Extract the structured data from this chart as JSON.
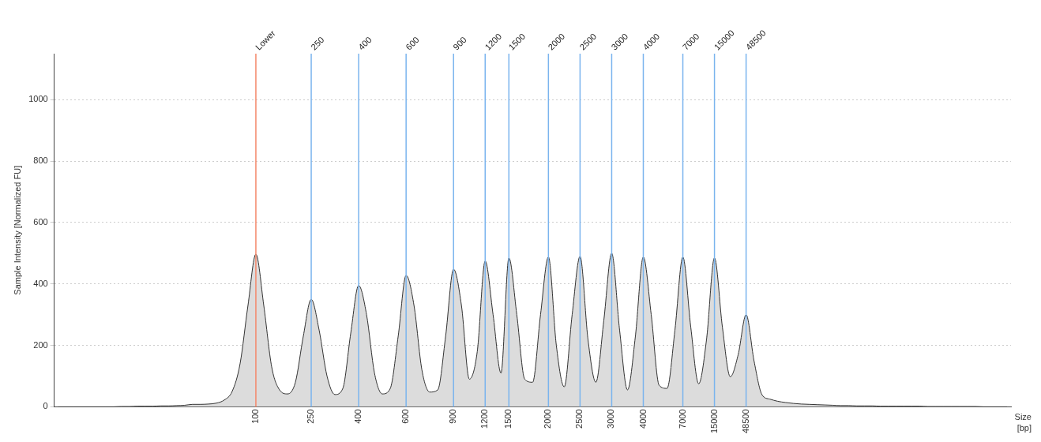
{
  "chart_data": {
    "type": "area",
    "xlabel": "Size [bp]",
    "ylabel": "Sample Intensity [Normalized FU]",
    "categories": [
      null,
      null,
      null,
      null,
      null,
      null,
      null,
      null,
      null,
      null,
      null,
      null,
      null,
      null,
      null,
      null,
      null,
      null,
      null,
      null,
      null,
      null,
      null,
      null,
      null,
      "100",
      null,
      null,
      null,
      null,
      null,
      null,
      "250",
      null,
      null,
      null,
      null,
      null,
      "400",
      null,
      null,
      null,
      null,
      null,
      "600",
      null,
      null,
      null,
      null,
      null,
      "900",
      null,
      null,
      null,
      "1200",
      null,
      null,
      "1500",
      null,
      null,
      null,
      null,
      "2000",
      null,
      null,
      null,
      "2500",
      null,
      null,
      null,
      "3000",
      null,
      null,
      null,
      "4000",
      null,
      null,
      null,
      null,
      "7000",
      null,
      null,
      null,
      "15000",
      null,
      null,
      null,
      "48500",
      null,
      null,
      null,
      null,
      null,
      null,
      null,
      null,
      null,
      null,
      null,
      null,
      null,
      null,
      null,
      null,
      null,
      null,
      null,
      null,
      null,
      null,
      null,
      null,
      null,
      null,
      null,
      null,
      null,
      null,
      null,
      null,
      null
    ],
    "series": [
      {
        "color": "#dcdcdc",
        "values": [
          0,
          0,
          0,
          0,
          0,
          0,
          0,
          0,
          1,
          1,
          2,
          2,
          2,
          3,
          3,
          4,
          5,
          8,
          8,
          9,
          12,
          22,
          50,
          140,
          330,
          497,
          330,
          130,
          55,
          42,
          80,
          230,
          350,
          250,
          100,
          40,
          60,
          240,
          395,
          300,
          110,
          42,
          60,
          230,
          428,
          330,
          120,
          48,
          55,
          230,
          448,
          330,
          90,
          180,
          475,
          300,
          110,
          485,
          300,
          90,
          80,
          300,
          488,
          200,
          65,
          300,
          490,
          220,
          80,
          280,
          500,
          250,
          55,
          230,
          488,
          300,
          70,
          60,
          250,
          488,
          260,
          75,
          220,
          485,
          260,
          98,
          170,
          300,
          150,
          40,
          25,
          18,
          14,
          11,
          9,
          8,
          7,
          6,
          5,
          4,
          4,
          3,
          3,
          3,
          2,
          2,
          2,
          2,
          2,
          2,
          1,
          1,
          1,
          1,
          1,
          1,
          1,
          0,
          0,
          0,
          0
        ]
      }
    ],
    "ylim": [
      0,
      1150
    ],
    "yticks": [
      0,
      200,
      400,
      600,
      800,
      1000
    ],
    "grid": "y",
    "legend": false,
    "ref_lines": [
      {
        "axis": "x",
        "value": "100",
        "label": "Lower",
        "color": "#f4876a"
      },
      {
        "axis": "x",
        "value": "250",
        "color": "#7ab4ee"
      },
      {
        "axis": "x",
        "value": "400",
        "color": "#7ab4ee"
      },
      {
        "axis": "x",
        "value": "600",
        "color": "#7ab4ee"
      },
      {
        "axis": "x",
        "value": "900",
        "color": "#7ab4ee"
      },
      {
        "axis": "x",
        "value": "1200",
        "color": "#7ab4ee"
      },
      {
        "axis": "x",
        "value": "1500",
        "color": "#7ab4ee"
      },
      {
        "axis": "x",
        "value": "2000",
        "color": "#7ab4ee"
      },
      {
        "axis": "x",
        "value": "2500",
        "color": "#7ab4ee"
      },
      {
        "axis": "x",
        "value": "3000",
        "color": "#7ab4ee"
      },
      {
        "axis": "x",
        "value": "4000",
        "color": "#7ab4ee"
      },
      {
        "axis": "x",
        "value": "7000",
        "color": "#7ab4ee"
      },
      {
        "axis": "x",
        "value": "15000",
        "color": "#7ab4ee"
      },
      {
        "axis": "x",
        "value": "48500",
        "color": "#7ab4ee"
      }
    ]
  }
}
